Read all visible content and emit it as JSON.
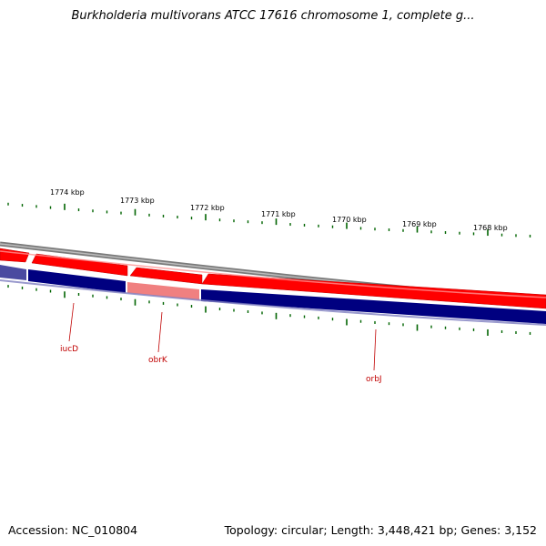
{
  "title": "Burkholderia multivorans ATCC 17616 chromosome 1, complete g...",
  "footer": {
    "accession": "Accession: NC_010804",
    "summary": "Topology: circular; Length: 3,448,421 bp; Genes: 3,152"
  },
  "ruler_labels": [
    "1774 kbp",
    "1773 kbp",
    "1772 kbp",
    "1771 kbp",
    "1770 kbp",
    "1769 kbp",
    "1768 kbp"
  ],
  "gene_labels": [
    "iucD",
    "obrK",
    "orbJ"
  ],
  "colors": {
    "forward_strand": "#ff0000",
    "forward_strand_light": "#f08080",
    "reverse_strand": "#000080",
    "reverse_strand_light": "#5050a0",
    "backbone": "#808080",
    "tick": "#006400",
    "gene_label": "#c00000"
  }
}
